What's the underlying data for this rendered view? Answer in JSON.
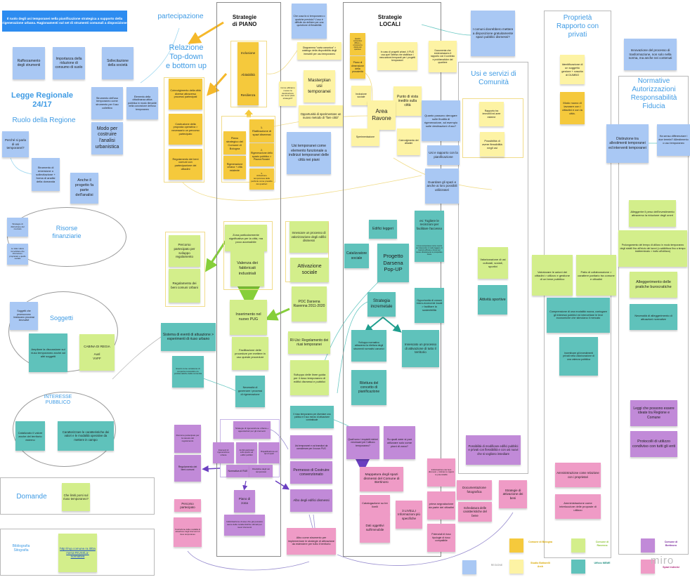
{
  "colors": {
    "blue": "#a9c8f4",
    "dyellow": "#f5c93c",
    "lyellow": "#fdf3a4",
    "green": "#d3ee8b",
    "teal": "#5fc2bb",
    "purple": "#c18ad8",
    "pink": "#ef9bc6",
    "banner": "#2d8cf0",
    "heading": "#3f9be4"
  },
  "banner": "Il ruolo degli usi temporanei nella pianificazione strategica a supporto della rigenerazione urbana.\nRagionamenti sul set di strumenti comunali a disposizione",
  "headings": {
    "partecipazione": "partecipazione",
    "relazione": "Relazione\nTop-down\ne bottom up",
    "legge": "Legge Regionale\n24/17",
    "ruolo": "Ruolo della Regione",
    "piano": "Strategie\ndi PIANO",
    "locali": "Strategie\nLOCALI",
    "comunita": "Usi e servizi di\nComunità",
    "proprieta": "Proprietà\nRapporto con\nprivati",
    "normative": "Normative\nAutorizzazioni\nResponsabilità\nFiducia",
    "risorse": "Risorse\nfinanziarie",
    "soggetti": "Soggetti",
    "interesse": "INTERESSE\nPUBBLICO",
    "domande": "Domande",
    "bibliografia": "Bibliografia\nSitografia"
  },
  "notes": [
    {
      "text": "Rafforzamento degli strumenti",
      "color": "blue"
    },
    {
      "text": "Importanza della riduzione di consumo di suolo",
      "color": "blue"
    },
    {
      "text": "Sollecitazione della società",
      "color": "blue"
    },
    {
      "text": "Perché si parla di usi temporanei?",
      "color": "blue"
    },
    {
      "text": "Strumento di emersione o sollecitazione + forma di analisi della domanda",
      "color": "blue"
    },
    {
      "text": "Anche il progetto fa parte dell'analisi",
      "color": "blue"
    },
    {
      "text": "Strumento dell'uso temporaneo come strumento per l'uso collettivo",
      "color": "blue"
    },
    {
      "text": "Elemento della cittadinanza attiva pubblica in modo rilevante nella concezione dell'uso temporaneo",
      "color": "blue"
    },
    {
      "text": "Modo per costruire l'analisi urbanistica",
      "color": "blue"
    },
    {
      "text": "Coinvolgimento della città diverse attraverso processi partecipati",
      "color": "dyellow"
    },
    {
      "text": "Costruzione della proposta operativa > necessario un percorso partecipato",
      "color": "dyellow"
    },
    {
      "text": "Regolamento dei beni comuni con partecipazione dei cittadini",
      "color": "dyellow"
    },
    {
      "text": "Inclusione",
      "color": "dyellow"
    },
    {
      "text": "Abitabilità",
      "color": "dyellow"
    },
    {
      "text": "Resilienza",
      "color": "dyellow"
    },
    {
      "text": "Piano strategico del Comune di Bologna",
      "color": "dyellow"
    },
    {
      "text": "Rigenerazione urbana + città esistente",
      "color": "dyellow"
    },
    {
      "text": "1.\nRiattivazione di spazi dismessi",
      "color": "dyellow"
    },
    {
      "text": "2.\nRigenerazione dello spazio pubblico > Piazza Rossini",
      "color": "dyellow"
    },
    {
      "text": "3.\nAttivazione temporanea delle periferie come presidio dei quartieri",
      "color": "dyellow"
    },
    {
      "text": "Che cosa fa sì temporaneo o qualche previsto? L'uso è difficile da definire per una questione di flessibilità",
      "color": "blue"
    },
    {
      "text": "Diagramma \"carta canonica\" > catalogo della disponibilità degli immobili per uso temporaneo",
      "color": "lyellow"
    },
    {
      "text": "Come abbiamo messo la destinazione nei nuovi piani strategici?",
      "color": "lyellow"
    },
    {
      "text": "Masterplan usi temporanei",
      "color": "lyellow"
    },
    {
      "text": "Opportunità di sperimentare un nuovo metodo di \"fare città\"",
      "color": "lyellow"
    },
    {
      "text": "Usi temporanei come elemento funzionale a indirizzi temporanei delle città nei piani",
      "color": "blue"
    },
    {
      "text": "Quadro conoscitivo diffuso + conoscenza diretta del quartiere",
      "color": "dyellow"
    },
    {
      "text": "Piano di dimensione della prossimità",
      "color": "dyellow"
    },
    {
      "text": "In caso di progetti urbani, il PUG usa quel l'attesa che stabilisce i meccanismi temporali per i progetti temporanei",
      "color": "lyellow"
    },
    {
      "text": "Documenta che evidenziassero il rapporto con il contesto e problematiche del quartiere",
      "color": "lyellow"
    },
    {
      "text": "Inclusione sociale",
      "color": "lyellow"
    },
    {
      "text": "Punto di vista inedito sulla città",
      "color": "lyellow"
    },
    {
      "text": "Area Ravone",
      "color": "lyellow"
    },
    {
      "text": "Sperimentazione",
      "color": "lyellow"
    },
    {
      "text": "Coinvolgimento dei cittadini",
      "color": "lyellow"
    },
    {
      "text": "I comuni dovrebbero mettere a disposizione gratuitamente spazi pubblici dismessi?",
      "color": "blue"
    },
    {
      "text": "Quanto possono derogare sulle finalità di rigenerazione, ad esempio sulle destinazioni d'uso?",
      "color": "blue"
    },
    {
      "text": "Usi e rapporto con la pianificazione",
      "color": "blue"
    },
    {
      "text": "Guardare gli spazi e anche ai loro possibili utilizzatori",
      "color": "blue"
    },
    {
      "text": "Rapporto tra immobili ed aree esterne",
      "color": "lyellow"
    },
    {
      "text": "Possibilità di avere flessibilità negli usi",
      "color": "lyellow"
    },
    {
      "text": "Identificazione di un soggetto gestore + nascita di DUMBO",
      "color": "lyellow"
    },
    {
      "text": "Modo nuovo di lavorare con i cittadini e con la città.",
      "color": "dyellow"
    },
    {
      "text": "Innovazione del processo di trasformazione, non solo nella norma, ma anche nei contenuti",
      "color": "blue"
    },
    {
      "text": "Distinzione tra allestimenti temporanei ed interventi temporanei",
      "color": "blue"
    },
    {
      "text": "Ha senso differenziare i due termini? Allestimento o uso temporaneo",
      "color": "blue"
    },
    {
      "text": "Strategie di distruzione del mercato",
      "color": "blue"
    },
    {
      "text": "Lo stato valore immobiliare che diminuisce i proprietari e quello sociale",
      "color": "blue"
    },
    {
      "text": "Soggetti che promuovono innescano processi innovativi",
      "color": "blue"
    },
    {
      "text": "Ampliare la discussione sul riuso temporaneo anche ad altri soggetti",
      "color": "teal"
    },
    {
      "text": "CABINA DI REGIA\n\nAusl\nVVFF",
      "color": "green"
    },
    {
      "text": "Percorso partecipato per sviluppo regolamento",
      "color": "green"
    },
    {
      "text": "Regolamento dei beni comuni Urbani",
      "color": "green"
    },
    {
      "text": "Sistema di eventi di attuazione > esperimenti di riuso urbano",
      "color": "teal"
    },
    {
      "text": "Eventi come occasione di scoperta necessità e le problematiche della comunità",
      "color": "teal"
    },
    {
      "text": "Zona particolarmente significativa per la città, ma poco accessibile",
      "color": "green"
    },
    {
      "text": "Valenza dei fabbricati industriali",
      "color": "green"
    },
    {
      "text": "Inserimento nel nuovo PUG",
      "color": "green"
    },
    {
      "text": "Facilitazione delle procedure per mettere in uso queste procedure",
      "color": "green"
    },
    {
      "text": "Necessità di governare i processi di rigenerazione",
      "color": "teal"
    },
    {
      "text": "Innescare un processo di valorizzazione degli edifici dismessi",
      "color": "green"
    },
    {
      "text": "Attivazione sociale",
      "color": "green"
    },
    {
      "text": "POC Darsena Ravenna 2011-2020",
      "color": "green"
    },
    {
      "text": "RI-Usi: Regolamento dei riusi temporanei",
      "color": "green"
    },
    {
      "text": "Sviluppo delle linee guida per il riuso temporaneo di edifici dismessi e pubblici",
      "color": "green"
    },
    {
      "text": "Edifici leggeri",
      "color": "teal"
    },
    {
      "text": "Catalizzatore sociale",
      "color": "teal"
    },
    {
      "text": "Progetto Darsena Pop-UP",
      "color": "teal"
    },
    {
      "text": "es: Togliere le recinzioni per facilitare l'accesso",
      "color": "teal"
    },
    {
      "text": "Il riuso temporaneo come mezzo per intervenire in modo leggero, in maniera efficace e breve per tenere direttamente le prospettive future",
      "color": "teal"
    },
    {
      "text": "Strategia incremetale",
      "color": "teal"
    },
    {
      "text": "Opportunità di creare micro-economie locali > facilitare la sostenibilità",
      "color": "teal"
    },
    {
      "text": "Sviluppo normativo attraverso la rilettura degli strumenti normativi canonici",
      "color": "teal"
    },
    {
      "text": "Innescato un processo di attivazione di tutto il territorio",
      "color": "teal"
    },
    {
      "text": "Rilettura del concetto di pianificazione",
      "color": "teal"
    },
    {
      "text": "Il riuso temporaneo per diventare una politica e il suo mezzo di attuazione contrattuale",
      "color": "teal"
    },
    {
      "text": "Valorizzazione di usi culturali, sociali, sportivi",
      "color": "green"
    },
    {
      "text": "Attività sportive",
      "color": "teal"
    },
    {
      "text": "Valorizzare le azioni dei cittadini > utilizzo e gestione di un bene pubblico",
      "color": "green"
    },
    {
      "text": "Patto di collaborazione > carattere paritario tra comune e cittadini",
      "color": "green"
    },
    {
      "text": "Comprensione di una modalità nuova, coniugare gli interessi pubblici ed intercettare le leve economiche che stimolano il mercato",
      "color": "teal"
    },
    {
      "text": "Incentivare gli investimenti privati nella valorizzazione di una valenza pubblica",
      "color": "teal"
    },
    {
      "text": "Alleggerire il peso dell'investimento attraverso la riduzione degli oneri",
      "color": "green"
    },
    {
      "text": "Prolungamento del tempo di utilizzo in modo temporaneo degli stabili fino all'inizio dei lavori (o addirittura fino a tempo indeterminato > invito all'utilizzo)",
      "color": "green"
    },
    {
      "text": "Alleggerimento delle pratiche burocratiche",
      "color": "green"
    },
    {
      "text": "Necessità di alleggerimento di attuazioni normative",
      "color": "teal"
    },
    {
      "text": "Leggi che possono essere ideate tra Regione e Comune",
      "color": "purple"
    },
    {
      "text": "Protocolli di utilizzo condiviso con tutti gli enti",
      "color": "purple"
    },
    {
      "text": "Amministrazione come relazione con i proprietari",
      "color": "pink"
    },
    {
      "text": "Amministrazione come interlocutore delle proposte di utilizzo",
      "color": "pink"
    },
    {
      "text": "Strategie di attivazione dei beni",
      "color": "pink"
    },
    {
      "text": "Possibilità di modificare edifici pubblici e privati con flessibilità e con usi nuovi che si vogliono insediare",
      "color": "purple"
    },
    {
      "text": "Quali sono i requisiti minimi necessari per l'utilizzo temporaneo?",
      "color": "purple"
    },
    {
      "text": "Su quali aree si può utilizzare solo come piani di zona?",
      "color": "purple"
    },
    {
      "text": "Mappatura degli spazi dismessi del Comune di Bertinoro",
      "color": "pink"
    },
    {
      "text": "Catalogazione su tre livelli",
      "color": "pink"
    },
    {
      "text": "Dati oggettivi sull'immobile",
      "color": "pink"
    },
    {
      "text": "3 LIVELLI Informazioni più specifiche",
      "color": "pink"
    },
    {
      "text": "Individuazione dei beni dismessi + indicare le ragioni le potenzialità",
      "color": "pink"
    },
    {
      "text": "prima segnalazione da parte dei cittadini",
      "color": "pink"
    },
    {
      "text": "Potenziali di riuso tipologie di riuso compatibile",
      "color": "pink"
    },
    {
      "text": "Documentazione fotografica",
      "color": "pink"
    },
    {
      "text": "Schedatura delle caratteristiche del bene",
      "color": "pink"
    },
    {
      "text": "Percorso partecipato per la stesura del regolamento",
      "color": "purple"
    },
    {
      "text": "Regolamento dei beni comuni",
      "color": "purple"
    },
    {
      "text": "Percorso partecipato",
      "color": "pink"
    },
    {
      "text": "Costruzione delle modalità di attuazione degli interventi di riuso temporaneo",
      "color": "pink"
    },
    {
      "text": "Strategie di rigenerazione urbana + agevolazioni per gli interventi",
      "color": "purple"
    },
    {
      "text": "Interventi di rigenerazione urbana",
      "color": "purple"
    },
    {
      "text": "Ambiti particolari sullo spazio ed edifici pubblici",
      "color": "purple"
    },
    {
      "text": "Riqualificazione ed tipi di spazi",
      "color": "purple"
    },
    {
      "text": "Normativa di RUE",
      "color": "purple"
    },
    {
      "text": "Disciplina degli usi temporanei",
      "color": "purple"
    },
    {
      "text": "Piano di zona",
      "color": "purple"
    },
    {
      "text": "Individuazione di aree che già possano avere delle caratteristiche ottimali per nuovi interventi",
      "color": "purple"
    },
    {
      "text": "Usi temporanei e usi transitori da considerare per il nuovo PUG",
      "color": "purple"
    },
    {
      "text": "Permesso di Costruire convenzionato",
      "color": "purple"
    },
    {
      "text": "Albo degli edifici dismessi",
      "color": "purple"
    },
    {
      "text": "Albo come strumento per implementare le strategie di attivazione da estendere per tutto il territorio",
      "color": "pink"
    },
    {
      "text": "Catalizzato il valore anche del territorio esterno",
      "color": "teal"
    },
    {
      "text": "Caratterizzare le caratteristiche dei valori e le modalità operative da mettere in campo",
      "color": "teal"
    },
    {
      "text": "Che limiti porsi sul riuso temporaneo?",
      "color": "green"
    }
  ],
  "link_note": {
    "text": "http://rup.comune.ra.it/Darsena-RIUSI/La-normativa",
    "color": "green"
  },
  "legend": [
    {
      "label": "REGIONE",
      "color": "blue"
    },
    {
      "label": "Comune di Bologna",
      "color": "dyellow"
    },
    {
      "label": "Studio Bottarelli Arch",
      "color": "lyellow"
    },
    {
      "label": "Comune di Ravenna",
      "color": "green"
    },
    {
      "label": "Ufficio MEME",
      "color": "teal"
    },
    {
      "label": "Comune di Bertinoro",
      "color": "purple"
    },
    {
      "label": "Spazi indecisi",
      "color": "pink"
    }
  ],
  "logo": "miro"
}
